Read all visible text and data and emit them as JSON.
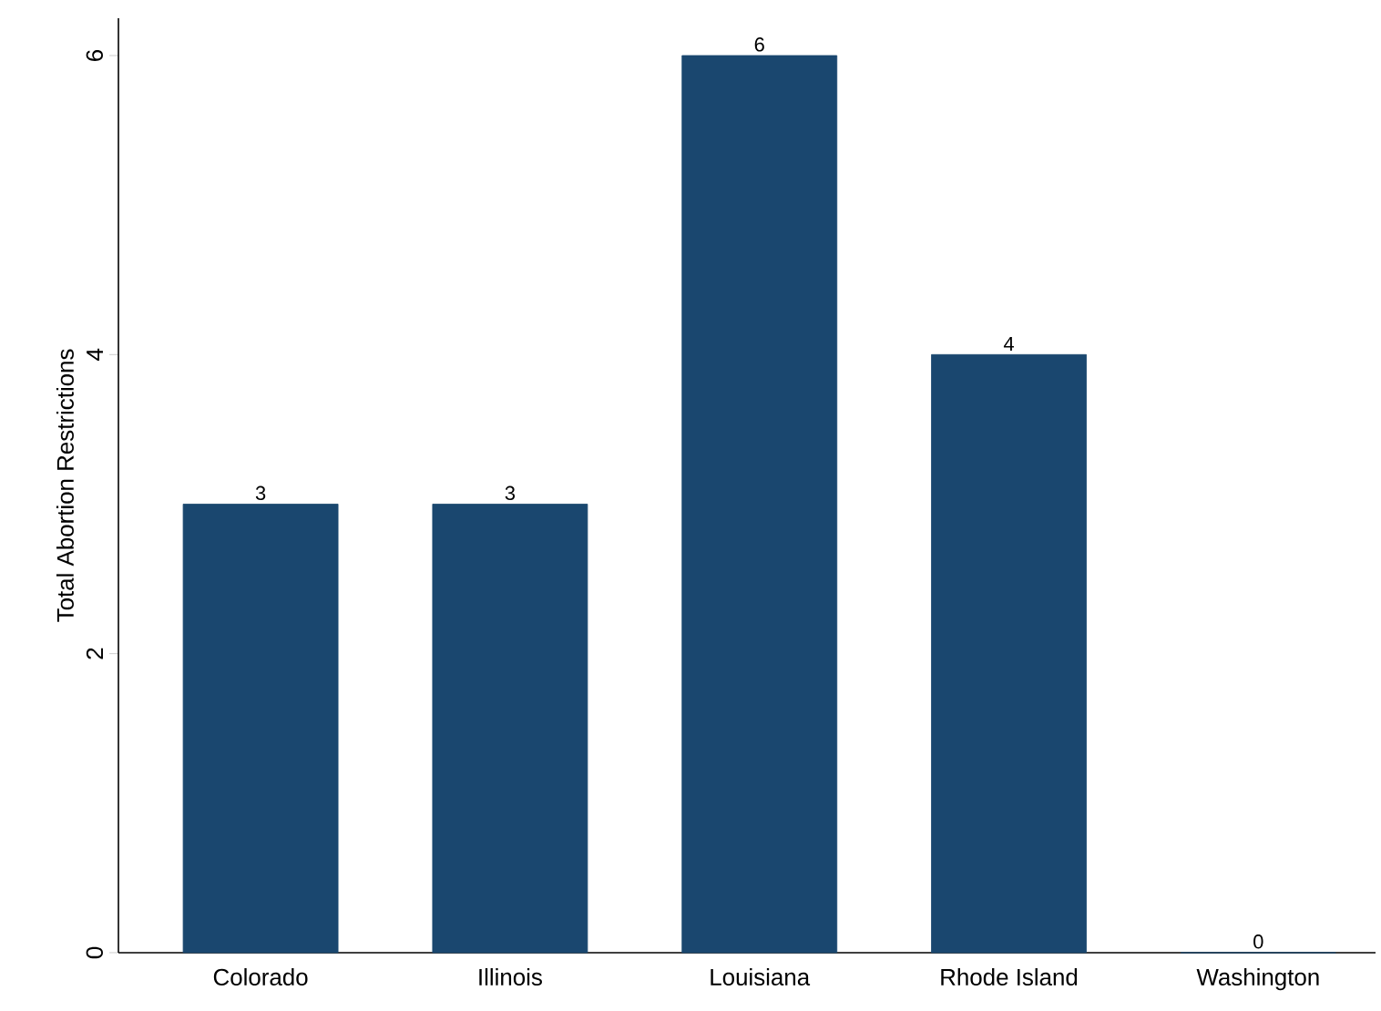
{
  "chart_data": {
    "type": "bar",
    "ylabel": "Total Abortion Restrictions",
    "categories": [
      "Colorado",
      "Illinois",
      "Louisiana",
      "Rhode Island",
      "Washington"
    ],
    "values": [
      3,
      3,
      6,
      4,
      0
    ],
    "color": "#1a476f",
    "ylim": [
      0,
      6.25
    ],
    "yticks": [
      0,
      2,
      4,
      6
    ],
    "data_labels": true
  }
}
